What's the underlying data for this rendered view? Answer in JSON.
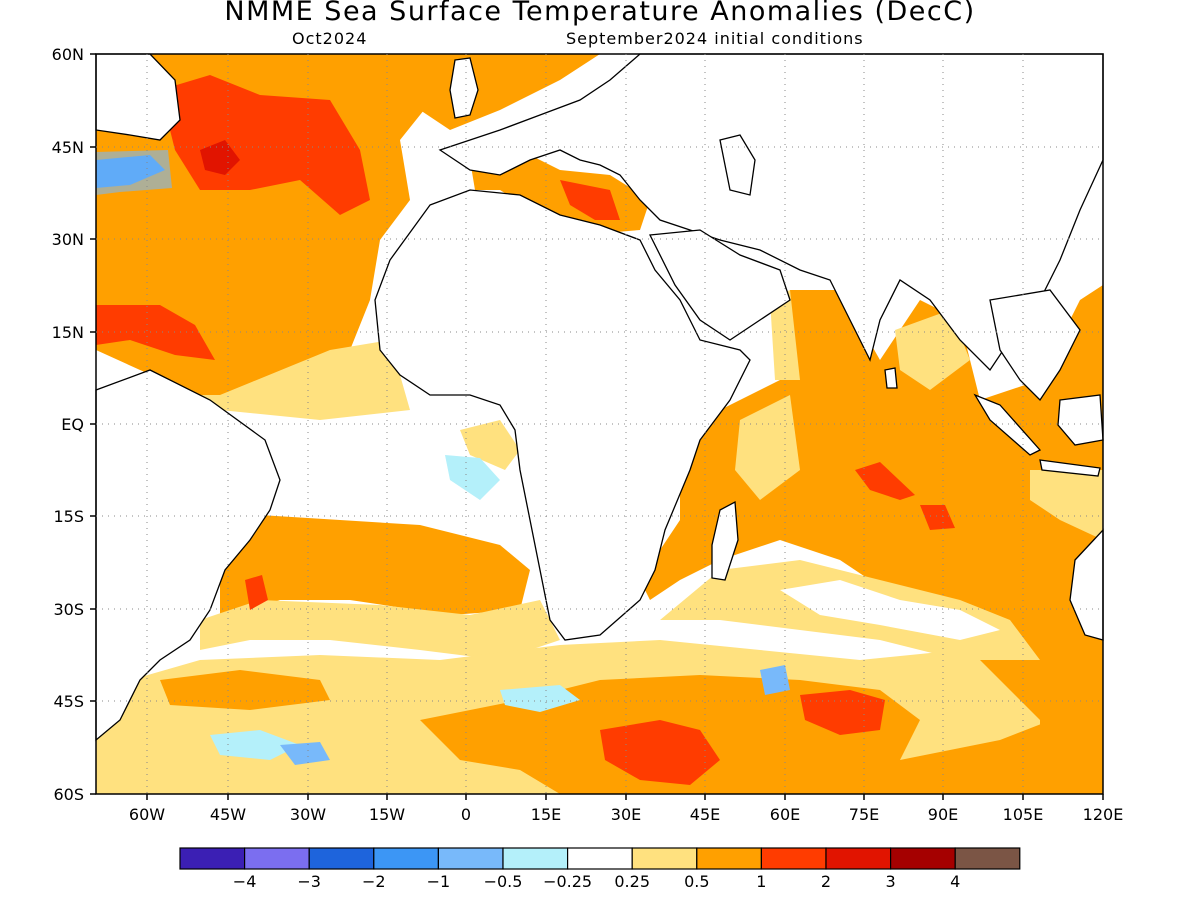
{
  "header": {
    "title": "NMME Sea Surface Temperature Anomalies (DecC)",
    "target_month": "Oct2024",
    "initial_conditions": "September2024 initial conditions"
  },
  "axes": {
    "lat_labels": [
      "60N",
      "45N",
      "30N",
      "15N",
      "EQ",
      "15S",
      "30S",
      "45S",
      "60S"
    ],
    "lon_labels": [
      "60W",
      "45W",
      "30W",
      "15W",
      "0",
      "15E",
      "30E",
      "45E",
      "60E",
      "75E",
      "90E",
      "105E",
      "120E"
    ]
  },
  "legend": {
    "colors": [
      "#3b1fb4",
      "#7b6ef0",
      "#1e64dc",
      "#3c96f5",
      "#78b9fa",
      "#b4f0fa",
      "#ffffff",
      "#ffe17f",
      "#ffa000",
      "#ff3c00",
      "#e11400",
      "#a50000",
      "#7b5545"
    ],
    "labels": [
      "−4",
      "−3",
      "−2",
      "−1",
      "−0.5",
      "−0.25",
      "0.25",
      "0.5",
      "1",
      "2",
      "3",
      "4"
    ]
  },
  "palette": {
    "land": "#ffffff",
    "neutral": "#ffffff",
    "weak_warm": "#ffe17f",
    "warm": "#ffa000",
    "hot": "#ff3c00",
    "very_hot": "#e11400",
    "cool": "#b4f0fa",
    "cold": "#78b9fa",
    "colder": "#3c96f5",
    "coast": "#000000"
  }
}
